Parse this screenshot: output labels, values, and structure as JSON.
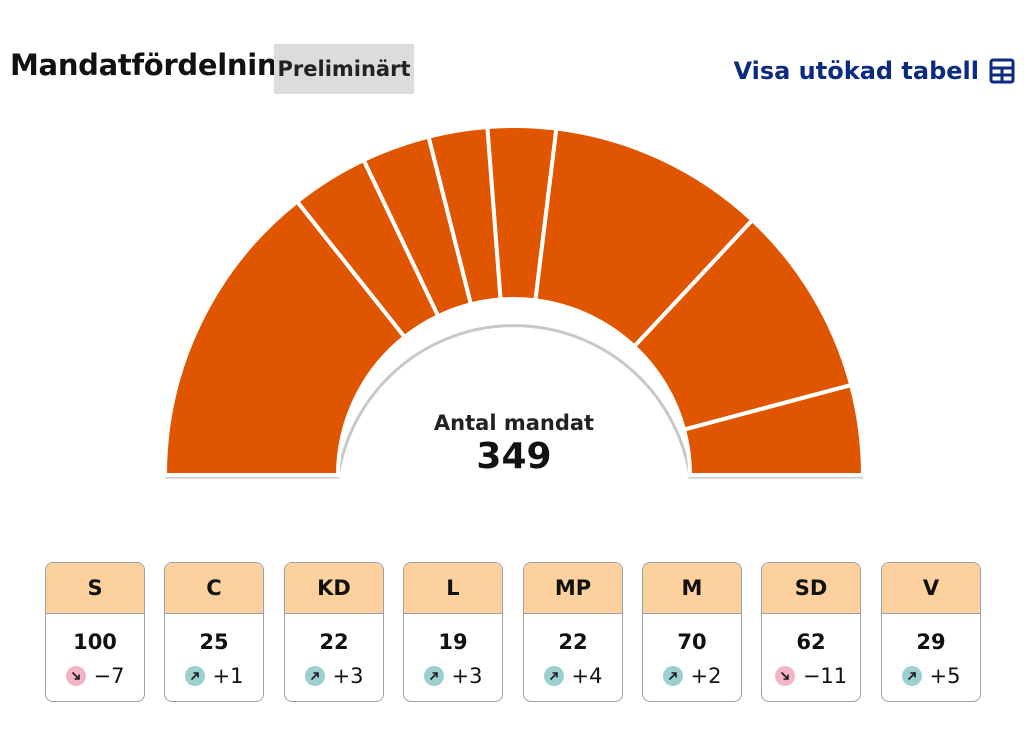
{
  "header": {
    "title": "Mandatfördelning",
    "badge": "Preliminärt",
    "link_label": "Visa utökad tabell",
    "link_icon": "table-icon",
    "link_color": "#0b2a80"
  },
  "center": {
    "label": "Antal mandat",
    "total": "349"
  },
  "colors": {
    "arc_fill": "#e05500",
    "card_header": "#fcd19d",
    "increase_dot": "#9ccfd0",
    "decrease_dot": "#f3b5c4"
  },
  "chart_data": {
    "type": "pie",
    "shape": "half-donut",
    "total": 349,
    "categories": [
      "V",
      "SD",
      "M",
      "MP",
      "L",
      "KD",
      "C",
      "S"
    ],
    "values": [
      29,
      62,
      70,
      22,
      19,
      22,
      25,
      100
    ]
  },
  "parties": [
    {
      "name": "S",
      "seats": "100",
      "change": "−7",
      "direction": "down"
    },
    {
      "name": "C",
      "seats": "25",
      "change": "+1",
      "direction": "up"
    },
    {
      "name": "KD",
      "seats": "22",
      "change": "+3",
      "direction": "up"
    },
    {
      "name": "L",
      "seats": "19",
      "change": "+3",
      "direction": "up"
    },
    {
      "name": "MP",
      "seats": "22",
      "change": "+4",
      "direction": "up"
    },
    {
      "name": "M",
      "seats": "70",
      "change": "+2",
      "direction": "up"
    },
    {
      "name": "SD",
      "seats": "62",
      "change": "−11",
      "direction": "down"
    },
    {
      "name": "V",
      "seats": "29",
      "change": "+5",
      "direction": "up"
    }
  ]
}
